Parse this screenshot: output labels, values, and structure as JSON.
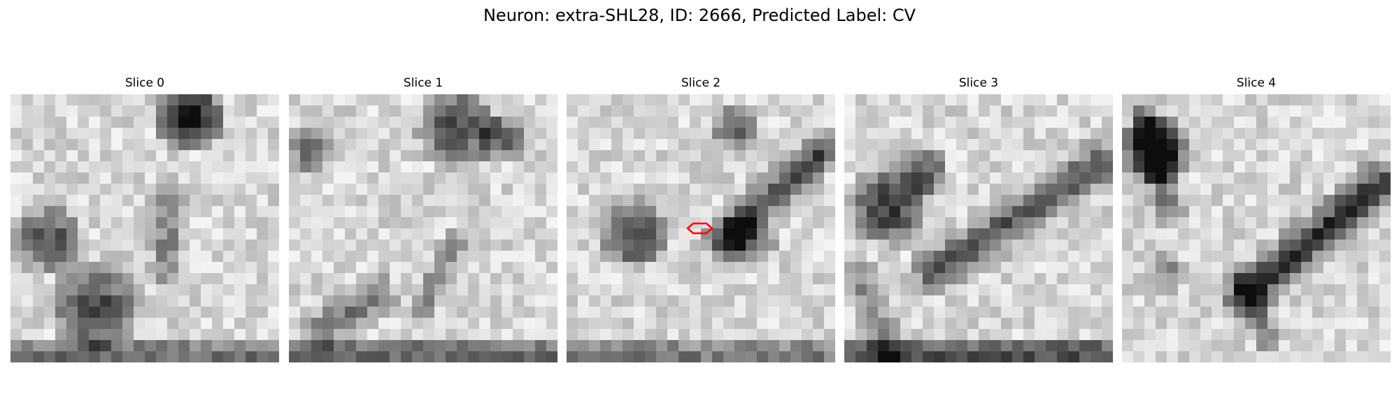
{
  "figure": {
    "title": "Neuron: extra-SHL28, ID: 2666, Predicted Label: CV"
  },
  "slices": [
    {
      "title": "Slice 0"
    },
    {
      "title": "Slice 1"
    },
    {
      "title": "Slice 2"
    },
    {
      "title": "Slice 3"
    },
    {
      "title": "Slice 4"
    }
  ],
  "colors": {
    "marker": "#ff0000",
    "colormap": "gray"
  }
}
